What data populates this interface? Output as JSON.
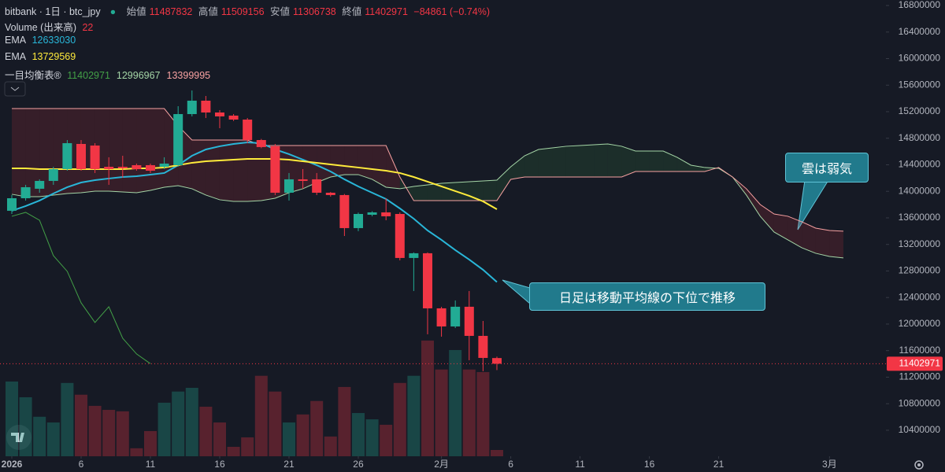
{
  "header": {
    "symbol": "bitbank · 1日 · btc_jpy",
    "open_label": "始値",
    "high_label": "高値",
    "low_label": "安値",
    "close_label": "終値",
    "change": "−84861 (−0.74%)"
  },
  "legend": {
    "volume": "Volume (出来高)",
    "ema": "EMA",
    "ichimoku": "一目均衡表®"
  },
  "chart_data": {
    "type": "candlestick",
    "open": [
      13707000,
      13896000,
      14039000,
      14157000,
      14335000,
      14714000,
      14690000,
      14370000,
      14370000,
      14394000,
      14394000,
      14370000,
      14394000,
      15164000,
      15366000,
      15188000,
      15141000,
      15081000,
      14773000,
      14679000,
      13979000,
      14181000,
      14181000,
      13979000,
      13944000,
      13446000,
      13647000,
      13683000,
      13659000,
      12996000,
      13067000,
      12237000,
      11964000,
      12261000,
      11822000,
      11487832
    ],
    "high": [
      13944000,
      14098000,
      14181000,
      14370000,
      14773000,
      14773000,
      14726000,
      14513000,
      14536000,
      14418000,
      14418000,
      14513000,
      15283000,
      15520000,
      15437000,
      15224000,
      15164000,
      15105000,
      14790000,
      14714000,
      14276000,
      14335000,
      14276000,
      13990000,
      13960000,
      13680000,
      13700000,
      13896000,
      13683000,
      13080000,
      13080000,
      12260000,
      12356000,
      12498000,
      12047000,
      11509156
    ],
    "low": [
      13659000,
      13861000,
      13979000,
      14098000,
      14311000,
      14311000,
      14276000,
      14098000,
      14204000,
      14311000,
      14276000,
      14335000,
      14370000,
      15129000,
      15105000,
      14951000,
      15060000,
      14726000,
      14650000,
      13944000,
      13861000,
      14039000,
      13944000,
      13920000,
      13327000,
      13400000,
      13624000,
      13564000,
      12960000,
      12498000,
      11846000,
      11810000,
      11940000,
      11455000,
      11289000,
      11306738
    ],
    "close": [
      13896000,
      14062000,
      14157000,
      14335000,
      14726000,
      14335000,
      14335000,
      14335000,
      14347000,
      14335000,
      14311000,
      14418000,
      15164000,
      15366000,
      15188000,
      15129000,
      15081000,
      14773000,
      14667000,
      13979000,
      14181000,
      14157000,
      13979000,
      13944000,
      13446000,
      13659000,
      13683000,
      13624000,
      12996000,
      13067000,
      12237000,
      11964000,
      12261000,
      11822000,
      11490000,
      11402971
    ],
    "volume": [
      261,
      206,
      138,
      118,
      256,
      215,
      176,
      162,
      157,
      28,
      88,
      187,
      226,
      239,
      173,
      118,
      33,
      66,
      281,
      226,
      118,
      146,
      193,
      69,
      242,
      151,
      129,
      110,
      256,
      281,
      404,
      303,
      371,
      303,
      294,
      22
    ],
    "up_color": "#22ab94",
    "down_color": "#f23645",
    "xlim": [
      -0.852,
      63.07
    ],
    "xticks": [
      {
        "value": 0,
        "label": "2026"
      },
      {
        "value": 5,
        "label": "6"
      },
      {
        "value": 10,
        "label": "11"
      },
      {
        "value": 15,
        "label": "16"
      },
      {
        "value": 20,
        "label": "21"
      },
      {
        "value": 25,
        "label": "26"
      },
      {
        "value": 31,
        "label": "2月"
      },
      {
        "value": 36,
        "label": "6"
      },
      {
        "value": 41,
        "label": "11"
      },
      {
        "value": 46,
        "label": "16"
      },
      {
        "value": 51,
        "label": "21"
      },
      {
        "value": 59,
        "label": "3月"
      }
    ],
    "ylim": [
      10008000,
      16883000
    ],
    "yticks": [
      16800000,
      16400000,
      16000000,
      15600000,
      15200000,
      14800000,
      14400000,
      14000000,
      13600000,
      13200000,
      12800000,
      12400000,
      12000000,
      11600000,
      11200000,
      10800000,
      10400000
    ],
    "volume_lim": [
      0,
      412
    ],
    "ema": [
      {
        "color": "#29b6d8",
        "values": [
          13707000,
          13778000,
          13861000,
          13967000,
          14062000,
          14133000,
          14169000,
          14193000,
          14216000,
          14228000,
          14252000,
          14276000,
          14394000,
          14536000,
          14631000,
          14679000,
          14714000,
          14738000,
          14726000,
          14631000,
          14560000,
          14477000,
          14394000,
          14299000,
          14181000,
          14074000,
          13979000,
          13884000,
          13742000,
          13588000,
          13410000,
          13268000,
          13114000,
          12972000,
          12818000,
          12633030
        ]
      },
      {
        "color": "#ffeb3b",
        "values": [
          14347000,
          14347000,
          14335000,
          14335000,
          14335000,
          14335000,
          14335000,
          14335000,
          14335000,
          14347000,
          14347000,
          14359000,
          14394000,
          14430000,
          14453000,
          14465000,
          14477000,
          14489000,
          14489000,
          14489000,
          14477000,
          14453000,
          14430000,
          14406000,
          14382000,
          14359000,
          14335000,
          14311000,
          14276000,
          14216000,
          14145000,
          14074000,
          14003000,
          13932000,
          13849000,
          13729569
        ]
      }
    ],
    "ichimoku": {
      "span_a_color": "#a5d6a7",
      "span_b_color": "#f7a1a1",
      "lagging_color": "#43a047",
      "span_a": [
        13956000,
        13920000,
        13920000,
        13944000,
        13967000,
        13979000,
        14003000,
        14003000,
        13991000,
        13979000,
        14015000,
        14062000,
        14086000,
        14039000,
        13944000,
        13873000,
        13849000,
        13849000,
        13861000,
        13896000,
        13979000,
        14039000,
        14133000,
        14216000,
        14252000,
        14252000,
        14181000,
        14062000,
        14039000,
        14074000,
        14098000,
        14121000,
        14133000,
        14145000,
        14157000,
        14169000,
        14370000,
        14536000,
        14631000,
        14655000,
        14679000,
        14690000,
        14702000,
        14714000,
        14679000,
        14607000,
        14607000,
        14607000,
        14513000,
        14394000,
        14359000,
        14347000,
        14216000,
        13944000,
        13624000,
        13387000,
        13268000,
        13150000,
        13067000,
        13019000,
        12996967
      ],
      "span_b": [
        15247000,
        15247000,
        15247000,
        15247000,
        15247000,
        15247000,
        15247000,
        15247000,
        15247000,
        15247000,
        15247000,
        15247000,
        14987000,
        14773000,
        14773000,
        14773000,
        14773000,
        14773000,
        14690000,
        14690000,
        14690000,
        14690000,
        14690000,
        14690000,
        14690000,
        14690000,
        14690000,
        14690000,
        14216000,
        13861000,
        13861000,
        13861000,
        13861000,
        13861000,
        13861000,
        13861000,
        14181000,
        14216000,
        14216000,
        14216000,
        14216000,
        14216000,
        14216000,
        14216000,
        14216000,
        14299000,
        14299000,
        14299000,
        14299000,
        14299000,
        14299000,
        14359000,
        14216000,
        14039000,
        13801000,
        13659000,
        13624000,
        13541000,
        13446000,
        13410000,
        13399995
      ],
      "lagging": [
        13624000,
        13683000,
        13564000,
        13031000,
        12794000,
        12320000,
        12024000,
        12261000,
        11787000,
        11550000,
        11402971
      ]
    },
    "annotations": [
      {
        "text": "雲は弱気"
      },
      {
        "text": "日足は移動平均線の下位で推移"
      }
    ]
  }
}
